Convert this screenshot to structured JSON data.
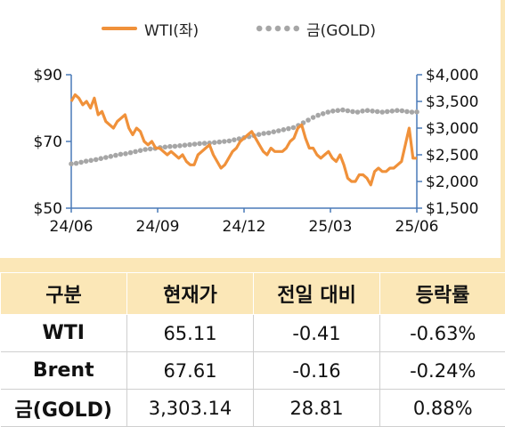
{
  "chart_data": {
    "type": "line",
    "legend": {
      "position": "top-center"
    },
    "series": [
      {
        "name": "WTI(좌)",
        "axis": "left",
        "color": "#f0913a",
        "style": "line",
        "values": [
          82,
          84,
          83,
          81,
          82,
          80,
          83,
          78,
          79,
          76,
          75,
          74,
          76,
          77,
          78,
          74,
          72,
          74,
          73,
          70,
          69,
          70,
          68,
          68,
          67,
          66,
          67,
          66,
          65,
          66,
          64,
          63,
          63,
          66,
          67,
          68,
          69,
          66,
          64,
          62,
          63,
          65,
          67,
          68,
          70,
          71,
          72,
          73,
          71,
          69,
          67,
          66,
          68,
          67,
          67,
          67,
          68,
          70,
          71,
          74,
          75,
          71,
          68,
          68,
          66,
          65,
          66,
          67,
          65,
          64,
          66,
          63,
          59,
          58,
          58,
          60,
          60,
          59,
          57,
          61,
          62,
          61,
          61,
          62,
          62,
          63,
          64,
          69,
          74,
          65,
          65
        ]
      },
      {
        "name": "금(GOLD)",
        "axis": "right",
        "color": "#a6a6a6",
        "style": "dotted",
        "values": [
          2330,
          2340,
          2360,
          2380,
          2395,
          2410,
          2430,
          2450,
          2470,
          2490,
          2510,
          2520,
          2540,
          2560,
          2580,
          2600,
          2610,
          2620,
          2635,
          2645,
          2655,
          2660,
          2670,
          2680,
          2690,
          2700,
          2710,
          2715,
          2720,
          2730,
          2740,
          2750,
          2760,
          2780,
          2800,
          2820,
          2840,
          2860,
          2880,
          2900,
          2910,
          2930,
          2950,
          2970,
          2990,
          3010,
          3050,
          3100,
          3150,
          3200,
          3240,
          3270,
          3300,
          3320,
          3330,
          3340,
          3325,
          3310,
          3300,
          3320,
          3330,
          3320,
          3310,
          3300,
          3310,
          3320,
          3330,
          3325,
          3310,
          3300,
          3303
        ]
      }
    ],
    "x_ticks": [
      "24/06",
      "24/09",
      "24/12",
      "25/03",
      "25/06"
    ],
    "y_left": {
      "ticks": [
        "$90",
        "$70",
        "$50"
      ],
      "min": 50,
      "max": 90
    },
    "y_right": {
      "ticks": [
        "$4,000",
        "$3,500",
        "$3,000",
        "$2,500",
        "$2,000",
        "$1,500"
      ],
      "min": 1500,
      "max": 4000
    }
  },
  "table": {
    "headers": [
      "구분",
      "현재가",
      "전일 대비",
      "등락률"
    ],
    "rows": [
      [
        "WTI",
        "65.11",
        "-0.41",
        "-0.63%"
      ],
      [
        "Brent",
        "67.61",
        "-0.16",
        "-0.24%"
      ],
      [
        "금(GOLD)",
        "3,303.14",
        "28.81",
        "0.88%"
      ]
    ]
  }
}
